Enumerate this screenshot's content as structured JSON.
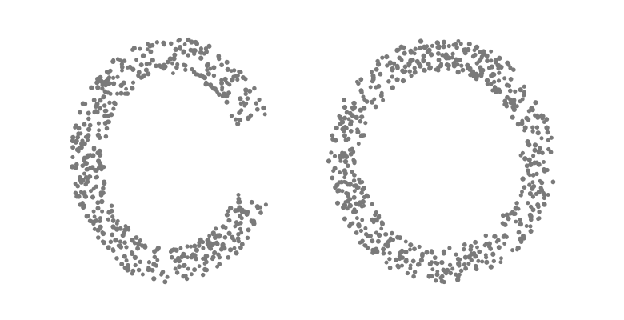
{
  "canvas": {
    "background": "#ffffff"
  },
  "figures": [
    {
      "name": "stippled-letter-c",
      "shape": "C",
      "dot_color": "#7a7a7a",
      "dot_count": 560
    },
    {
      "name": "stippled-letter-o",
      "shape": "O",
      "dot_color": "#7a7a7a",
      "dot_count": 640
    }
  ]
}
